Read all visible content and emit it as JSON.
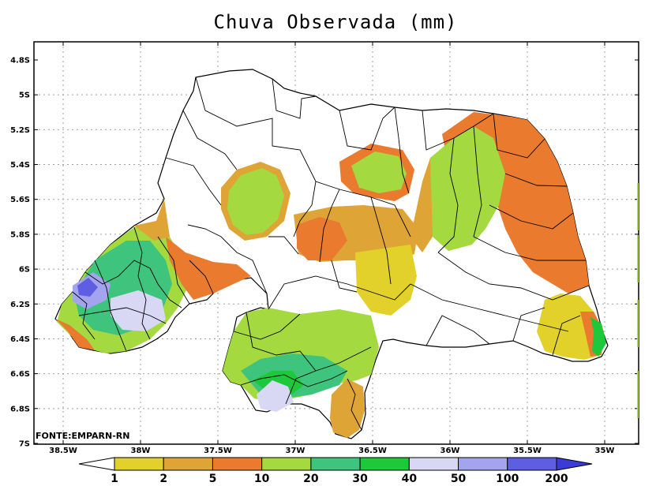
{
  "title": "Chuva Observada (mm)",
  "source_note": "FONTE:EMPARN-RN",
  "lat_ticks": [
    "4.8S",
    "5S",
    "5.2S",
    "5.4S",
    "5.6S",
    "5.8S",
    "6S",
    "6.2S",
    "6.4S",
    "6.6S",
    "6.8S",
    "7S"
  ],
  "lon_ticks": [
    "38.5W",
    "38W",
    "37.5W",
    "37W",
    "36.5W",
    "36W",
    "35.5W",
    "35W"
  ],
  "legend": {
    "breaks": [
      "1",
      "2",
      "5",
      "10",
      "20",
      "30",
      "40",
      "50",
      "100",
      "200"
    ],
    "colors": [
      "#ffffff",
      "#e3d12b",
      "#dfa436",
      "#ea7a2e",
      "#a4d93f",
      "#3ec47c",
      "#1dc93a",
      "#d8d8f4",
      "#a4a4ee",
      "#5e5ee2",
      "#3b3bd9"
    ]
  },
  "colors": {
    "frame": "#000000",
    "grid": "#a0a0a0"
  }
}
